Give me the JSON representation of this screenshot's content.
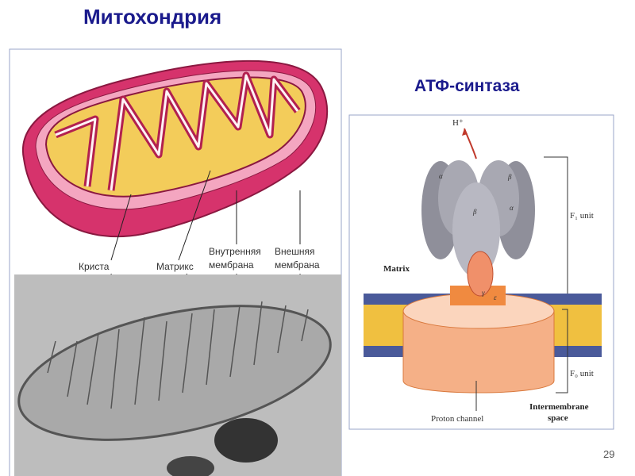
{
  "title": "Митохондрия",
  "subtitle": "АТФ-синтаза",
  "page_number": "29",
  "mito_labels": {
    "crista": "Криста",
    "matrix": "Матрикс",
    "inner_membrane": [
      "Внутренняя",
      "мембрана"
    ],
    "outer_membrane": [
      "Внешняя",
      "мембрана"
    ]
  },
  "atp_labels": {
    "proton": "H⁺",
    "f1": "F₁ unit",
    "fo": "F₀ unit",
    "matrix": "Matrix",
    "proton_channel": "Proton channel",
    "intermembrane": [
      "Intermembrane",
      "space"
    ],
    "alpha": "α",
    "beta": "β",
    "gamma": "γ",
    "epsilon": "ε"
  }
}
